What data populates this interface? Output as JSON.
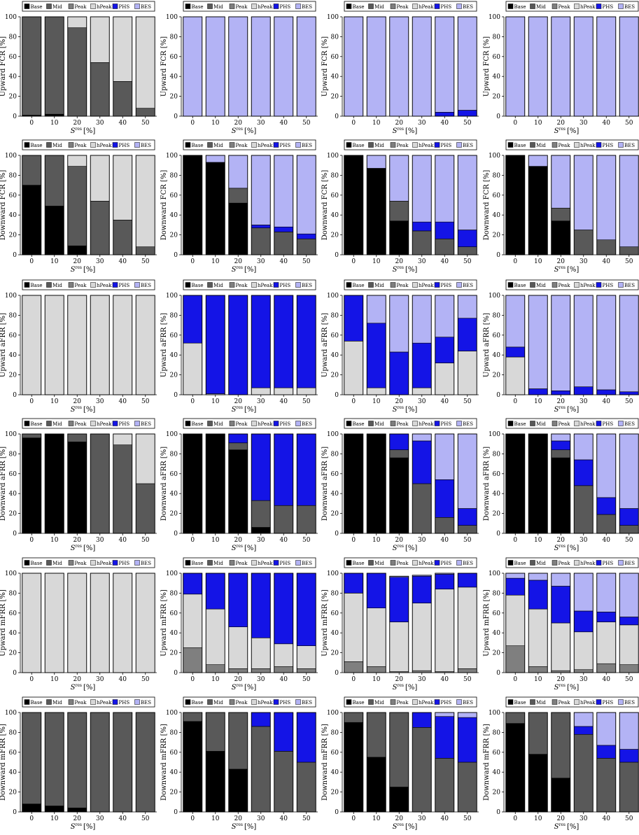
{
  "colors": {
    "Base": "#000000",
    "Mid": "#595959",
    "Peak": "#7f7f7f",
    "hPeak": "#d8d8d8",
    "PHS": "#1414e6",
    "BES": "#b3b3f5"
  },
  "legend": [
    "Base",
    "Mid",
    "Peak",
    "hPeak",
    "PHS",
    "BES"
  ],
  "x_axis": {
    "label_main": "S",
    "label_super": "res",
    "label_unit": "[%]",
    "categories": [
      "0",
      "10",
      "20",
      "30",
      "40",
      "50"
    ]
  },
  "y_ticks": [
    "0",
    "20",
    "40",
    "60",
    "80",
    "100"
  ],
  "chart_data": [
    {
      "type": "bar",
      "stacked": true,
      "row": 0,
      "col": 0,
      "ylabel": "Upward FCR [%]",
      "ylim": [
        0,
        100
      ],
      "categories": [
        "0",
        "10",
        "20",
        "30",
        "40",
        "50"
      ],
      "series": [
        {
          "name": "Base",
          "values": [
            1,
            2,
            0,
            0,
            0,
            0
          ]
        },
        {
          "name": "Mid",
          "values": [
            99,
            98,
            89,
            54,
            35,
            8
          ]
        },
        {
          "name": "hPeak",
          "values": [
            0,
            0,
            11,
            46,
            65,
            92
          ]
        }
      ]
    },
    {
      "type": "bar",
      "stacked": true,
      "row": 0,
      "col": 1,
      "ylabel": "Upward FCR [%]",
      "ylim": [
        0,
        100
      ],
      "categories": [
        "0",
        "10",
        "20",
        "30",
        "40",
        "50"
      ],
      "series": [
        {
          "name": "BES",
          "values": [
            100,
            100,
            100,
            100,
            100,
            100
          ]
        }
      ]
    },
    {
      "type": "bar",
      "stacked": true,
      "row": 0,
      "col": 2,
      "ylabel": "Upward FCR [%]",
      "ylim": [
        0,
        100
      ],
      "categories": [
        "0",
        "10",
        "20",
        "30",
        "40",
        "50"
      ],
      "series": [
        {
          "name": "PHS",
          "values": [
            0,
            0,
            0,
            0,
            4,
            6
          ]
        },
        {
          "name": "BES",
          "values": [
            100,
            100,
            100,
            100,
            96,
            94
          ]
        }
      ]
    },
    {
      "type": "bar",
      "stacked": true,
      "row": 0,
      "col": 3,
      "ylabel": "Upward FCR [%]",
      "ylim": [
        0,
        100
      ],
      "categories": [
        "0",
        "10",
        "20",
        "30",
        "40",
        "50"
      ],
      "series": [
        {
          "name": "BES",
          "values": [
            100,
            100,
            100,
            100,
            100,
            100
          ]
        }
      ]
    },
    {
      "type": "bar",
      "stacked": true,
      "row": 1,
      "col": 0,
      "ylabel": "Downward FCR [%]",
      "ylim": [
        0,
        100
      ],
      "categories": [
        "0",
        "10",
        "20",
        "30",
        "40",
        "50"
      ],
      "series": [
        {
          "name": "Base",
          "values": [
            70,
            49,
            9,
            0,
            0,
            0
          ]
        },
        {
          "name": "Mid",
          "values": [
            30,
            51,
            80,
            54,
            35,
            8
          ]
        },
        {
          "name": "hPeak",
          "values": [
            0,
            0,
            11,
            46,
            65,
            92
          ]
        }
      ]
    },
    {
      "type": "bar",
      "stacked": true,
      "row": 1,
      "col": 1,
      "ylabel": "Downward FCR [%]",
      "ylim": [
        0,
        100
      ],
      "categories": [
        "0",
        "10",
        "20",
        "30",
        "40",
        "50"
      ],
      "series": [
        {
          "name": "Base",
          "values": [
            100,
            93,
            52,
            0,
            0,
            0
          ]
        },
        {
          "name": "Mid",
          "values": [
            0,
            0,
            15,
            27,
            23,
            16
          ]
        },
        {
          "name": "PHS",
          "values": [
            0,
            0,
            0,
            3,
            5,
            5
          ]
        },
        {
          "name": "BES",
          "values": [
            0,
            7,
            33,
            70,
            72,
            79
          ]
        }
      ]
    },
    {
      "type": "bar",
      "stacked": true,
      "row": 1,
      "col": 2,
      "ylabel": "Downward FCR [%]",
      "ylim": [
        0,
        100
      ],
      "categories": [
        "0",
        "10",
        "20",
        "30",
        "40",
        "50"
      ],
      "series": [
        {
          "name": "Base",
          "values": [
            100,
            87,
            34,
            0,
            0,
            0
          ]
        },
        {
          "name": "Mid",
          "values": [
            0,
            0,
            20,
            24,
            16,
            8
          ]
        },
        {
          "name": "PHS",
          "values": [
            0,
            0,
            0,
            9,
            17,
            17
          ]
        },
        {
          "name": "BES",
          "values": [
            0,
            13,
            46,
            67,
            67,
            75
          ]
        }
      ]
    },
    {
      "type": "bar",
      "stacked": true,
      "row": 1,
      "col": 3,
      "ylabel": "Downward FCR [%]",
      "ylim": [
        0,
        100
      ],
      "categories": [
        "0",
        "10",
        "20",
        "30",
        "40",
        "50"
      ],
      "series": [
        {
          "name": "Base",
          "values": [
            100,
            89,
            34,
            0,
            0,
            0
          ]
        },
        {
          "name": "Mid",
          "values": [
            0,
            0,
            13,
            25,
            15,
            8
          ]
        },
        {
          "name": "BES",
          "values": [
            0,
            11,
            53,
            75,
            85,
            92
          ]
        }
      ]
    },
    {
      "type": "bar",
      "stacked": true,
      "row": 2,
      "col": 0,
      "ylabel": "Upward aFRR [%]",
      "ylim": [
        0,
        100
      ],
      "categories": [
        "0",
        "10",
        "20",
        "30",
        "40",
        "50"
      ],
      "series": [
        {
          "name": "hPeak",
          "values": [
            100,
            100,
            100,
            100,
            100,
            100
          ]
        }
      ]
    },
    {
      "type": "bar",
      "stacked": true,
      "row": 2,
      "col": 1,
      "ylabel": "Upward aFRR [%]",
      "ylim": [
        0,
        100
      ],
      "categories": [
        "0",
        "10",
        "20",
        "30",
        "40",
        "50"
      ],
      "series": [
        {
          "name": "hPeak",
          "values": [
            52,
            1,
            0,
            7,
            7,
            7
          ]
        },
        {
          "name": "PHS",
          "values": [
            48,
            99,
            100,
            93,
            93,
            93
          ]
        }
      ]
    },
    {
      "type": "bar",
      "stacked": true,
      "row": 2,
      "col": 2,
      "ylabel": "Upward aFRR [%]",
      "ylim": [
        0,
        100
      ],
      "categories": [
        "0",
        "10",
        "20",
        "30",
        "40",
        "50"
      ],
      "series": [
        {
          "name": "hPeak",
          "values": [
            54,
            7,
            0,
            7,
            32,
            44
          ]
        },
        {
          "name": "PHS",
          "values": [
            46,
            65,
            43,
            45,
            26,
            33
          ]
        },
        {
          "name": "BES",
          "values": [
            0,
            28,
            57,
            48,
            42,
            23
          ]
        }
      ]
    },
    {
      "type": "bar",
      "stacked": true,
      "row": 2,
      "col": 3,
      "ylabel": "Upward aFRR [%]",
      "ylim": [
        0,
        100
      ],
      "categories": [
        "0",
        "10",
        "20",
        "30",
        "40",
        "50"
      ],
      "series": [
        {
          "name": "hPeak",
          "values": [
            38,
            0,
            0,
            0,
            0,
            0
          ]
        },
        {
          "name": "PHS",
          "values": [
            10,
            6,
            4,
            8,
            5,
            3
          ]
        },
        {
          "name": "BES",
          "values": [
            52,
            94,
            96,
            92,
            95,
            97
          ]
        }
      ]
    },
    {
      "type": "bar",
      "stacked": true,
      "row": 3,
      "col": 0,
      "ylabel": "Downward aFRR [%]",
      "ylim": [
        0,
        100
      ],
      "categories": [
        "0",
        "10",
        "20",
        "30",
        "40",
        "50"
      ],
      "series": [
        {
          "name": "Base",
          "values": [
            96,
            100,
            92,
            0,
            0,
            0
          ]
        },
        {
          "name": "Mid",
          "values": [
            4,
            0,
            8,
            100,
            89,
            50
          ]
        },
        {
          "name": "hPeak",
          "values": [
            0,
            0,
            0,
            0,
            11,
            50
          ]
        }
      ]
    },
    {
      "type": "bar",
      "stacked": true,
      "row": 3,
      "col": 1,
      "ylabel": "Downward aFRR [%]",
      "ylim": [
        0,
        100
      ],
      "categories": [
        "0",
        "10",
        "20",
        "30",
        "40",
        "50"
      ],
      "series": [
        {
          "name": "Base",
          "values": [
            100,
            100,
            84,
            6,
            0,
            0
          ]
        },
        {
          "name": "Mid",
          "values": [
            0,
            0,
            7,
            27,
            28,
            28
          ]
        },
        {
          "name": "PHS",
          "values": [
            0,
            0,
            9,
            67,
            72,
            72
          ]
        }
      ]
    },
    {
      "type": "bar",
      "stacked": true,
      "row": 3,
      "col": 2,
      "ylabel": "Downward aFRR [%]",
      "ylim": [
        0,
        100
      ],
      "categories": [
        "0",
        "10",
        "20",
        "30",
        "40",
        "50"
      ],
      "series": [
        {
          "name": "Base",
          "values": [
            100,
            100,
            76,
            0,
            0,
            0
          ]
        },
        {
          "name": "Mid",
          "values": [
            0,
            0,
            8,
            50,
            16,
            8
          ]
        },
        {
          "name": "PHS",
          "values": [
            0,
            0,
            16,
            43,
            38,
            17
          ]
        },
        {
          "name": "BES",
          "values": [
            0,
            0,
            0,
            7,
            46,
            75
          ]
        }
      ]
    },
    {
      "type": "bar",
      "stacked": true,
      "row": 3,
      "col": 3,
      "ylabel": "Downward aFRR [%]",
      "ylim": [
        0,
        100
      ],
      "categories": [
        "0",
        "10",
        "20",
        "30",
        "40",
        "50"
      ],
      "series": [
        {
          "name": "Base",
          "values": [
            100,
            100,
            76,
            0,
            0,
            0
          ]
        },
        {
          "name": "Mid",
          "values": [
            0,
            0,
            8,
            48,
            19,
            8
          ]
        },
        {
          "name": "PHS",
          "values": [
            0,
            0,
            9,
            26,
            17,
            17
          ]
        },
        {
          "name": "BES",
          "values": [
            0,
            0,
            7,
            26,
            64,
            75
          ]
        }
      ]
    },
    {
      "type": "bar",
      "stacked": true,
      "row": 4,
      "col": 0,
      "ylabel": "Upward mFRR [%]",
      "ylim": [
        0,
        100
      ],
      "categories": [
        "0",
        "10",
        "20",
        "30",
        "40",
        "50"
      ],
      "series": [
        {
          "name": "hPeak",
          "values": [
            100,
            100,
            100,
            100,
            100,
            100
          ]
        }
      ]
    },
    {
      "type": "bar",
      "stacked": true,
      "row": 4,
      "col": 1,
      "ylabel": "Upward mFRR [%]",
      "ylim": [
        0,
        100
      ],
      "categories": [
        "0",
        "10",
        "20",
        "30",
        "40",
        "50"
      ],
      "series": [
        {
          "name": "Peak",
          "values": [
            25,
            8,
            4,
            4,
            6,
            4
          ]
        },
        {
          "name": "hPeak",
          "values": [
            54,
            56,
            42,
            31,
            23,
            23
          ]
        },
        {
          "name": "PHS",
          "values": [
            21,
            36,
            54,
            65,
            71,
            73
          ]
        }
      ]
    },
    {
      "type": "bar",
      "stacked": true,
      "row": 4,
      "col": 2,
      "ylabel": "Upward mFRR [%]",
      "ylim": [
        0,
        100
      ],
      "categories": [
        "0",
        "10",
        "20",
        "30",
        "40",
        "50"
      ],
      "series": [
        {
          "name": "Peak",
          "values": [
            11,
            6,
            1,
            2,
            1,
            4
          ]
        },
        {
          "name": "hPeak",
          "values": [
            69,
            59,
            50,
            68,
            83,
            82
          ]
        },
        {
          "name": "PHS",
          "values": [
            20,
            35,
            45,
            27,
            15,
            14
          ]
        },
        {
          "name": "BES",
          "values": [
            0,
            0,
            1,
            1,
            1,
            0
          ]
        }
      ]
    },
    {
      "type": "bar",
      "stacked": true,
      "row": 4,
      "col": 3,
      "ylabel": "Upward mFRR [%]",
      "ylim": [
        0,
        100
      ],
      "categories": [
        "0",
        "10",
        "20",
        "30",
        "40",
        "50"
      ],
      "series": [
        {
          "name": "Peak",
          "values": [
            27,
            6,
            2,
            3,
            9,
            8
          ]
        },
        {
          "name": "hPeak",
          "values": [
            51,
            58,
            48,
            38,
            42,
            40
          ]
        },
        {
          "name": "PHS",
          "values": [
            17,
            29,
            37,
            21,
            10,
            8
          ]
        },
        {
          "name": "BES",
          "values": [
            5,
            7,
            13,
            38,
            39,
            44
          ]
        }
      ]
    },
    {
      "type": "bar",
      "stacked": true,
      "row": 5,
      "col": 0,
      "ylabel": "Downward mFRR [%]",
      "ylim": [
        0,
        100
      ],
      "categories": [
        "0",
        "10",
        "20",
        "30",
        "40",
        "50"
      ],
      "series": [
        {
          "name": "Base",
          "values": [
            8,
            6,
            4,
            0,
            0,
            0
          ]
        },
        {
          "name": "Mid",
          "values": [
            92,
            94,
            96,
            100,
            100,
            100
          ]
        }
      ]
    },
    {
      "type": "bar",
      "stacked": true,
      "row": 5,
      "col": 1,
      "ylabel": "Downward mFRR [%]",
      "ylim": [
        0,
        100
      ],
      "categories": [
        "0",
        "10",
        "20",
        "30",
        "40",
        "50"
      ],
      "series": [
        {
          "name": "Base",
          "values": [
            91,
            61,
            43,
            0,
            0,
            0
          ]
        },
        {
          "name": "Mid",
          "values": [
            9,
            39,
            57,
            86,
            61,
            50
          ]
        },
        {
          "name": "PHS",
          "values": [
            0,
            0,
            0,
            14,
            39,
            50
          ]
        }
      ]
    },
    {
      "type": "bar",
      "stacked": true,
      "row": 5,
      "col": 2,
      "ylabel": "Downward mFRR [%]",
      "ylim": [
        0,
        100
      ],
      "categories": [
        "0",
        "10",
        "20",
        "30",
        "40",
        "50"
      ],
      "series": [
        {
          "name": "Base",
          "values": [
            90,
            55,
            25,
            0,
            0,
            0
          ]
        },
        {
          "name": "Mid",
          "values": [
            10,
            45,
            75,
            85,
            54,
            50
          ]
        },
        {
          "name": "PHS",
          "values": [
            0,
            0,
            0,
            15,
            42,
            45
          ]
        },
        {
          "name": "BES",
          "values": [
            0,
            0,
            0,
            0,
            4,
            5
          ]
        }
      ]
    },
    {
      "type": "bar",
      "stacked": true,
      "row": 5,
      "col": 3,
      "ylabel": "Downward mFRR [%]",
      "ylim": [
        0,
        100
      ],
      "categories": [
        "0",
        "10",
        "20",
        "30",
        "40",
        "50"
      ],
      "series": [
        {
          "name": "Base",
          "values": [
            89,
            58,
            34,
            0,
            0,
            0
          ]
        },
        {
          "name": "Mid",
          "values": [
            11,
            42,
            66,
            78,
            54,
            50
          ]
        },
        {
          "name": "PHS",
          "values": [
            0,
            0,
            0,
            8,
            13,
            13
          ]
        },
        {
          "name": "BES",
          "values": [
            0,
            0,
            0,
            14,
            33,
            37
          ]
        }
      ]
    }
  ]
}
